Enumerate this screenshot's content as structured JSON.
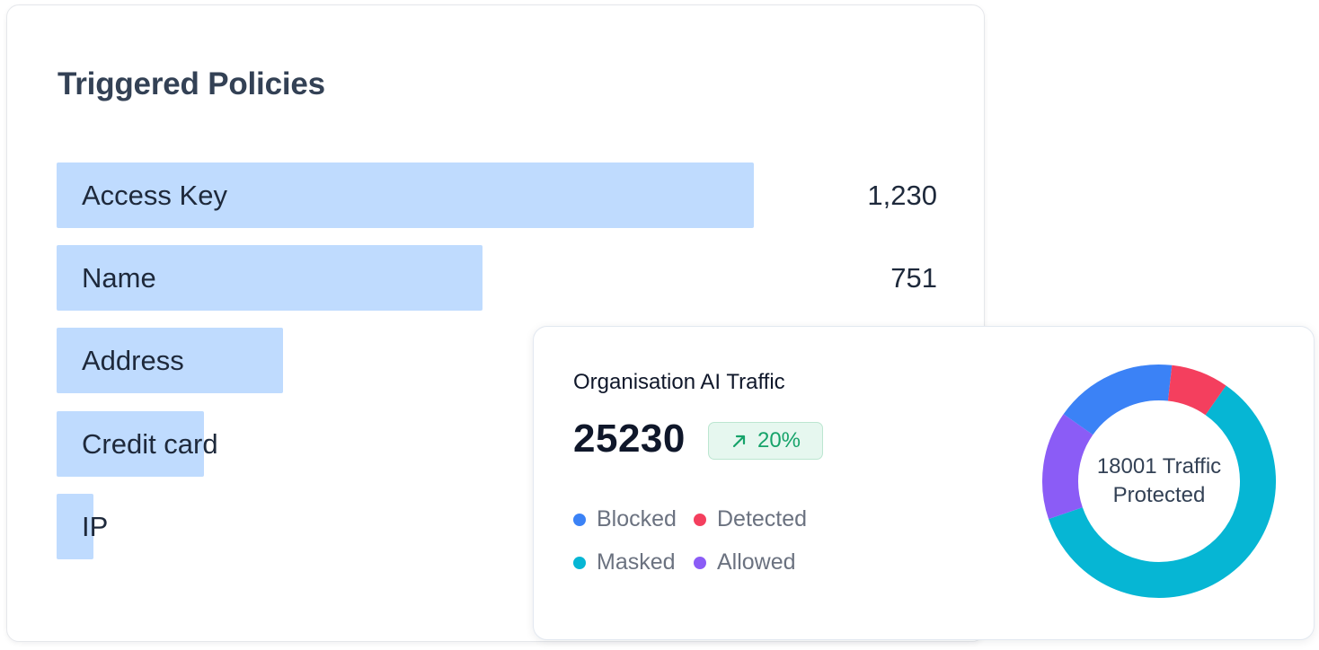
{
  "policies": {
    "title": "Triggered Policies",
    "max_value": 1230,
    "bars": [
      {
        "label": "Access Key",
        "value_text": "1,230",
        "value": 1230
      },
      {
        "label": "Name",
        "value_text": "751",
        "value": 751
      },
      {
        "label": "Address",
        "value_text": "",
        "value": 400
      },
      {
        "label": "Credit card",
        "value_text": "",
        "value": 260
      },
      {
        "label": "IP",
        "value_text": "",
        "value": 65
      }
    ]
  },
  "traffic": {
    "title": "Organisation AI Traffic",
    "total": "25230",
    "trend": {
      "icon": "arrow-up-right-icon",
      "label": "20%",
      "color": "#16a36a"
    },
    "legend": [
      {
        "label": "Blocked",
        "color": "#3b82f6"
      },
      {
        "label": "Detected",
        "color": "#f43f5e"
      },
      {
        "label": "Masked",
        "color": "#06b6d4"
      },
      {
        "label": "Allowed",
        "color": "#8b5cf6"
      }
    ],
    "donut": {
      "center_line1": "18001 Traffic",
      "center_line2": "Protected",
      "segments": [
        {
          "name": "Masked",
          "fraction": 0.6,
          "color": "#06b6d4"
        },
        {
          "name": "Allowed",
          "fraction": 0.15,
          "color": "#8b5cf6"
        },
        {
          "name": "Blocked",
          "fraction": 0.17,
          "color": "#3b82f6"
        },
        {
          "name": "Detected",
          "fraction": 0.08,
          "color": "#f43f5e"
        }
      ]
    }
  }
}
